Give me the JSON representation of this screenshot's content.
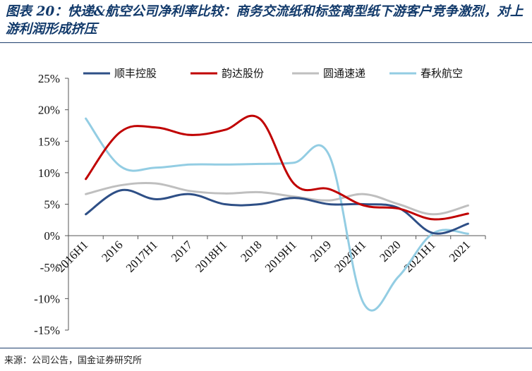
{
  "title": "图表 20：快递&航空公司净利率比较：商务交流纸和标签离型纸下游客户竞争激烈，对上游利润形成挤压",
  "source": "来源：公司公告，国金证券研究所",
  "chart_data": {
    "type": "line",
    "x": [
      "2016H1",
      "2016",
      "2017H1",
      "2017",
      "2018H1",
      "2018",
      "2019H1",
      "2019",
      "2020H1",
      "2020",
      "2021H1",
      "2021"
    ],
    "y_ticks": [
      "25%",
      "20%",
      "15%",
      "10%",
      "5%",
      "0%",
      "-5%",
      "-10%",
      "-15%"
    ],
    "ylim": [
      -15,
      25
    ],
    "unit": "%",
    "legend_position": "top",
    "series": [
      {
        "name": "顺丰控股",
        "color": "#2e4f86",
        "values": [
          3.4,
          7.2,
          5.8,
          6.6,
          5.0,
          5.0,
          6.0,
          5.0,
          5.0,
          4.4,
          0.4,
          1.9
        ]
      },
      {
        "name": "韵达股份",
        "color": "#c00000",
        "values": [
          9.0,
          16.5,
          17.2,
          16.0,
          16.8,
          18.6,
          8.2,
          7.4,
          4.8,
          4.3,
          2.6,
          3.5
        ]
      },
      {
        "name": "圆通速递",
        "color": "#bfbfbf",
        "values": [
          6.6,
          8.0,
          8.3,
          7.1,
          6.7,
          6.9,
          6.2,
          5.6,
          6.6,
          5.0,
          3.4,
          4.8
        ]
      },
      {
        "name": "春秋航空",
        "color": "#93cde3",
        "values": [
          18.6,
          11.0,
          10.8,
          11.3,
          11.3,
          11.4,
          11.6,
          12.8,
          -10.8,
          -6.5,
          0.4,
          0.3
        ]
      }
    ]
  }
}
